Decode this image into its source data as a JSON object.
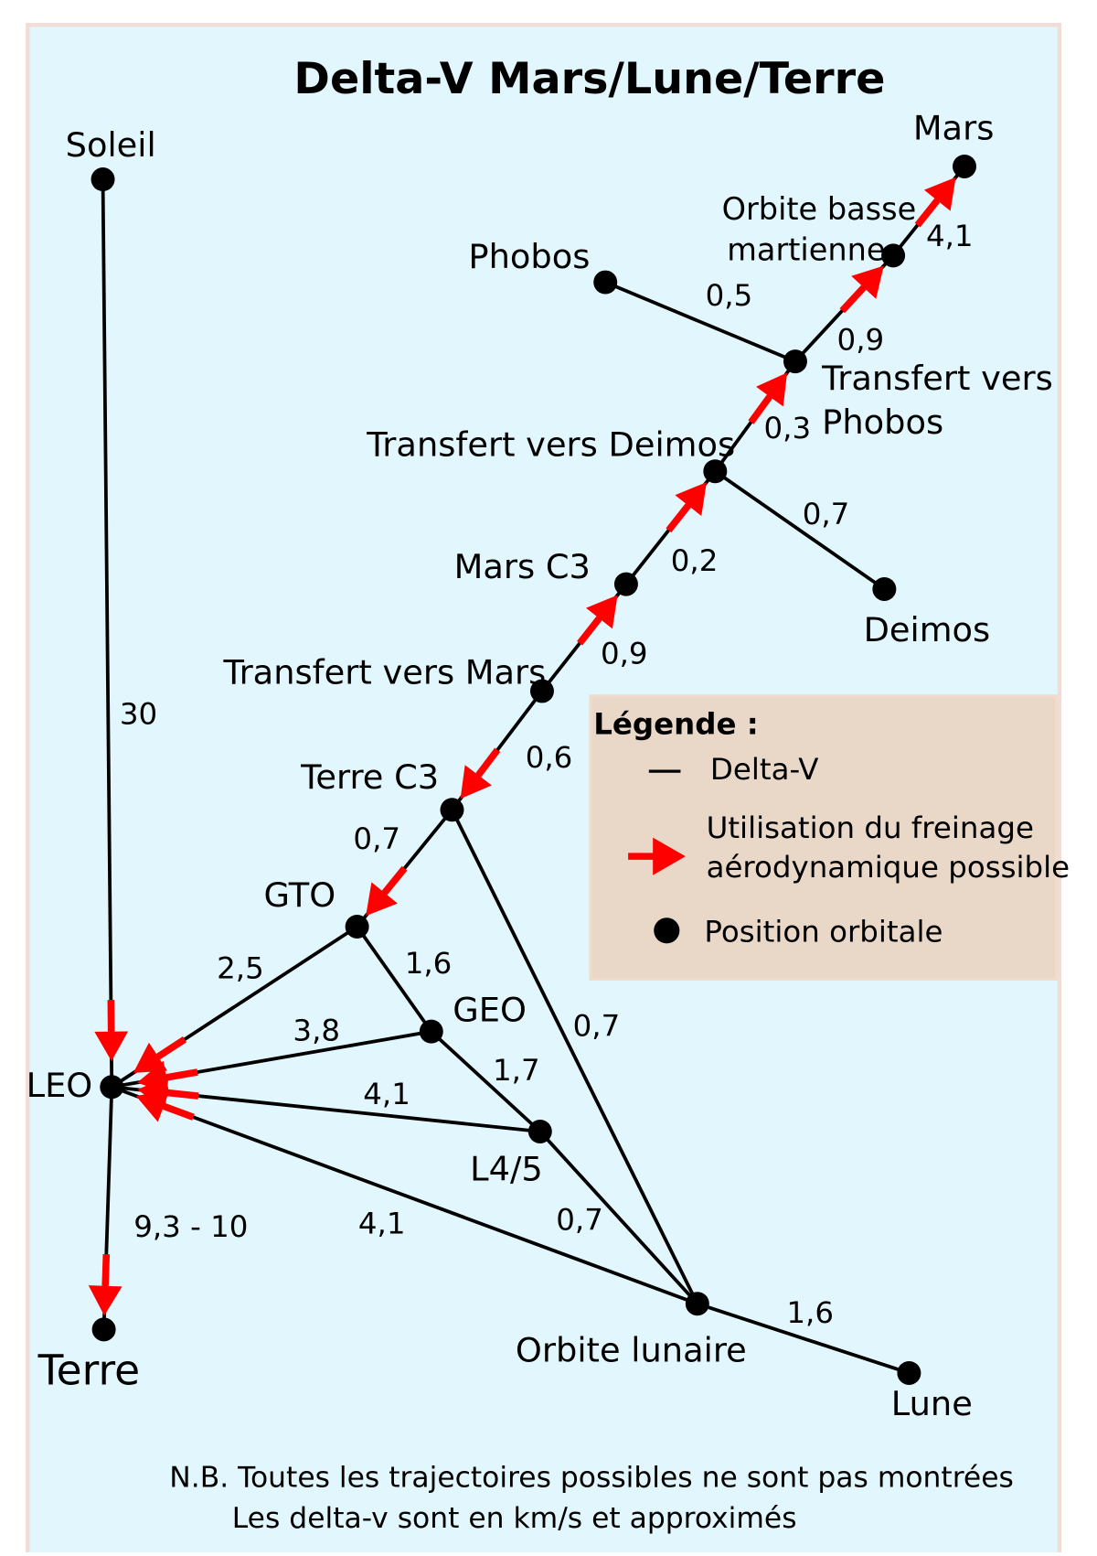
{
  "title": "Delta-V Mars/Lune/Terre",
  "nodes": [
    {
      "label": [
        "Soleil"
      ]
    },
    {
      "label": [
        "LEO"
      ]
    },
    {
      "label": [
        "Terre"
      ]
    },
    {
      "label": [
        "GTO"
      ]
    },
    {
      "label": [
        "GEO"
      ]
    },
    {
      "label": [
        "L4/5"
      ]
    },
    {
      "label": [
        "Orbite lunaire"
      ]
    },
    {
      "label": [
        "Lune"
      ]
    },
    {
      "label": [
        "Terre C3"
      ]
    },
    {
      "label": [
        "Transfert vers Mars"
      ]
    },
    {
      "label": [
        "Mars C3"
      ]
    },
    {
      "label": [
        "Transfert vers Deimos"
      ]
    },
    {
      "label": [
        "Deimos"
      ]
    },
    {
      "label": [
        "Transfert vers",
        "Phobos"
      ]
    },
    {
      "label": [
        "Phobos"
      ]
    },
    {
      "label": [
        "Orbite basse",
        "martienne"
      ]
    },
    {
      "label": [
        "Mars"
      ]
    }
  ],
  "edges": [
    {
      "from": 0,
      "to": 1,
      "label": "30",
      "aerobraking": true
    },
    {
      "from": 1,
      "to": 2,
      "label": "9,3 - 10",
      "aerobraking": true
    },
    {
      "from": 3,
      "to": 1,
      "label": "2,5",
      "aerobraking": true
    },
    {
      "from": 4,
      "to": 1,
      "label": "3,8",
      "aerobraking": true
    },
    {
      "from": 5,
      "to": 1,
      "label": "4,1",
      "aerobraking": true
    },
    {
      "from": 6,
      "to": 1,
      "label": "4,1",
      "aerobraking": true
    },
    {
      "from": 3,
      "to": 4,
      "label": "1,6",
      "aerobraking": false
    },
    {
      "from": 4,
      "to": 5,
      "label": "1,7",
      "aerobraking": false
    },
    {
      "from": 5,
      "to": 6,
      "label": "0,7",
      "aerobraking": false
    },
    {
      "from": 8,
      "to": 6,
      "label": "0,7",
      "aerobraking": false
    },
    {
      "from": 6,
      "to": 7,
      "label": "1,6",
      "aerobraking": false
    },
    {
      "from": 8,
      "to": 3,
      "label": "0,7",
      "aerobraking": true
    },
    {
      "from": 9,
      "to": 8,
      "label": "0,6",
      "aerobraking": true
    },
    {
      "from": 9,
      "to": 10,
      "label": "0,9",
      "aerobraking": true
    },
    {
      "from": 10,
      "to": 11,
      "label": "0,2",
      "aerobraking": true
    },
    {
      "from": 11,
      "to": 13,
      "label": "0,3",
      "aerobraking": true
    },
    {
      "from": 11,
      "to": 12,
      "label": "0,7",
      "aerobraking": false
    },
    {
      "from": 13,
      "to": 14,
      "label": "0,5",
      "aerobraking": false
    },
    {
      "from": 13,
      "to": 15,
      "label": "0,9",
      "aerobraking": true
    },
    {
      "from": 15,
      "to": 16,
      "label": "4,1",
      "aerobraking": true
    }
  ],
  "legend": {
    "title": "Légende :",
    "delta_v": "Delta-V",
    "aerobraking": [
      "Utilisation du freinage",
      "aérodynamique possible"
    ],
    "position": "Position orbitale"
  },
  "notes": [
    "N.B. Toutes les trajectoires possibles ne sont pas montrées",
    "Les delta-v sont en km/s et approximés"
  ]
}
